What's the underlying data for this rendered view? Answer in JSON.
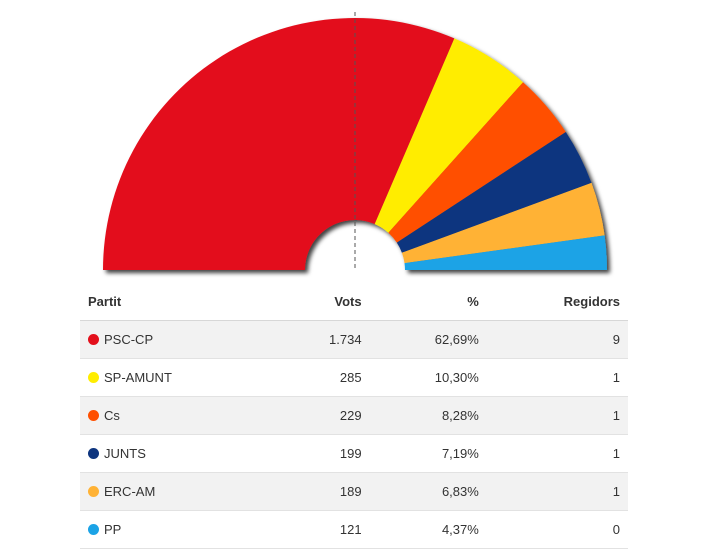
{
  "chart_data": {
    "type": "pie",
    "subtype": "parliament-semicircle",
    "majority_line": true,
    "columns": [
      "Partit",
      "Vots",
      "%",
      "Regidors"
    ],
    "parties": [
      {
        "name": "PSC-CP",
        "votes": "1.734",
        "percent": "62,69%",
        "seats": "9",
        "share": 62.69,
        "color": "#e30f1b"
      },
      {
        "name": "SP-AMUNT",
        "votes": "285",
        "percent": "10,30%",
        "seats": "1",
        "share": 10.3,
        "color": "#ffed00"
      },
      {
        "name": "Cs",
        "votes": "229",
        "percent": "8,28%",
        "seats": "1",
        "share": 8.28,
        "color": "#ff5000"
      },
      {
        "name": "JUNTS",
        "votes": "199",
        "percent": "7,19%",
        "seats": "1",
        "share": 7.19,
        "color": "#0e357f"
      },
      {
        "name": "ERC-AM",
        "votes": "189",
        "percent": "6,83%",
        "seats": "1",
        "share": 6.83,
        "color": "#ffb235"
      },
      {
        "name": "PP",
        "votes": "121",
        "percent": "4,37%",
        "seats": "0",
        "share": 4.37,
        "color": "#1ba3e6"
      }
    ]
  }
}
